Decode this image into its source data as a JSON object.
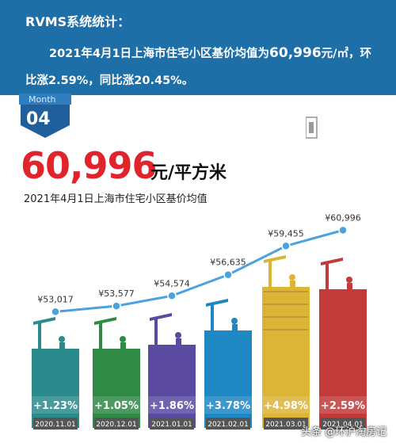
{
  "header": {
    "title": "RVMS系统统计：",
    "line1_pre": "2021年4月1日上海市住宅小区基价均值为",
    "line1_value": "60,996",
    "line1_post": "元/㎡，环",
    "line2": "比涨2.59%，同比涨20.45%。"
  },
  "month": {
    "label": "Month",
    "number": "04"
  },
  "headline": {
    "value": "60,996",
    "unit": "元/平方米",
    "subtitle": "2021年4月1日上海市住宅小区基价均值"
  },
  "watermark": "头条 @环沪淘房记",
  "colors": {
    "header_bg": "#1e6fa8",
    "price_red": "#e1242b",
    "line": "#4aa3df"
  },
  "chart_data": {
    "type": "line",
    "categories": [
      "2020.11.01",
      "2020.12.01",
      "2021.01.01",
      "2021.02.01",
      "2021.03.01",
      "2021.04.01"
    ],
    "values": [
      53017,
      53577,
      54574,
      56635,
      59455,
      60996
    ],
    "value_labels": [
      "¥53,017",
      "¥53,577",
      "¥54,574",
      "¥56,635",
      "¥59,455",
      "¥60,996"
    ],
    "changes": [
      "+1.23%",
      "+1.05%",
      "+1.86%",
      "+3.78%",
      "+4.98%",
      "+2.59%"
    ],
    "bar_colors": [
      "#2a8a8c",
      "#2f8a45",
      "#5a4aa0",
      "#1d88c4",
      "#dcb436",
      "#c23a3a"
    ]
  }
}
